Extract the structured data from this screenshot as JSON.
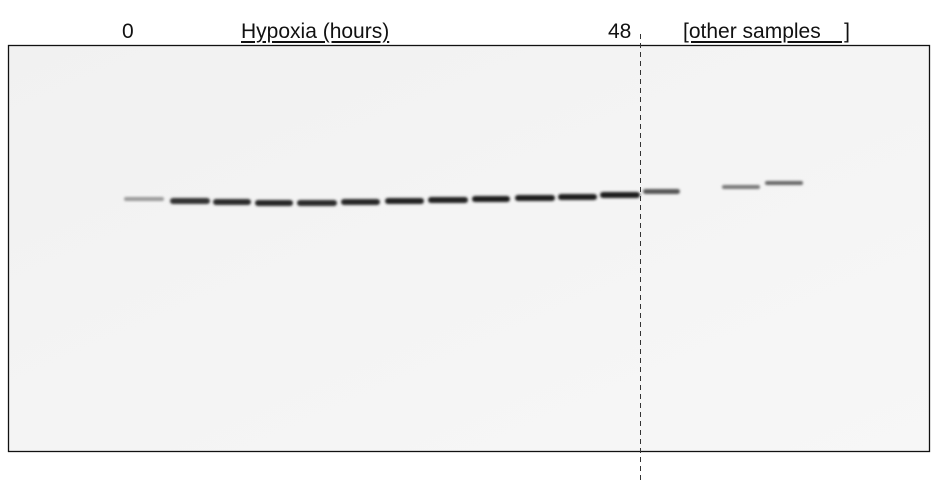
{
  "labels": {
    "start": "0",
    "title": "Hypoxia (hours)",
    "end": "48",
    "other": "[other samples    ]"
  }
}
